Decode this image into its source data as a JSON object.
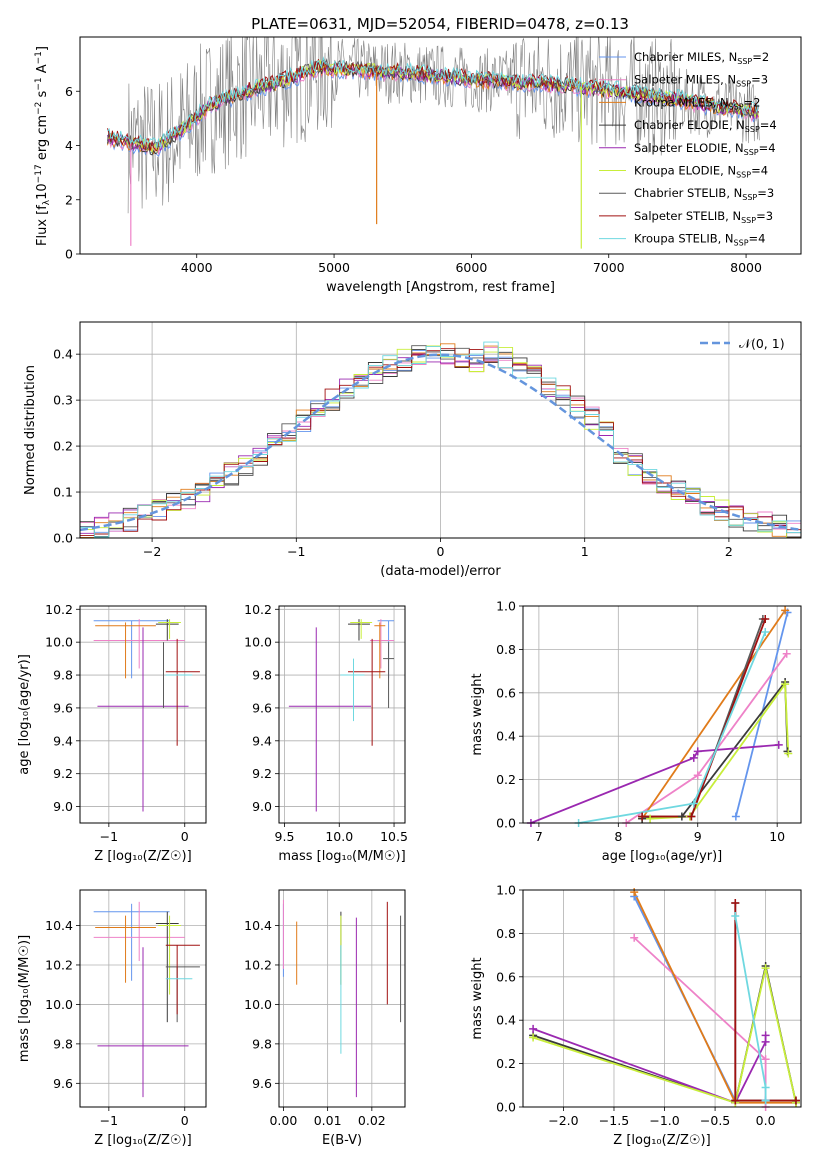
{
  "title": "PLATE=0631, MJD=52054, FIBERID=0478, z=0.13",
  "colors": {
    "chabrier_miles": "#6495ed",
    "salpeter_miles": "#ee82c8",
    "kroupa_miles": "#e07b1a",
    "chabrier_elodie": "#3a3a3a",
    "salpeter_elodie": "#9a28b0",
    "kroupa_elodie": "#c8ee3a",
    "chabrier_stelib": "#5a5a5a",
    "salpeter_stelib": "#a01010",
    "kroupa_stelib": "#6fd8e0",
    "data_gray": "#808080",
    "normal_curve": "#6495dd",
    "grid": "#b0b0b0"
  },
  "chart_data": [
    {
      "type": "line",
      "id": "spectrum",
      "xlabel": "wavelength [Angstrom, rest frame]",
      "ylabel_parts": [
        "Flux [f",
        "λ",
        "10",
        "−17",
        " erg cm",
        "−2",
        " s",
        "−1",
        " A",
        "−1",
        "]"
      ],
      "xlim": [
        3150,
        8400
      ],
      "ylim": [
        0,
        8
      ],
      "xticks": [
        4000,
        5000,
        6000,
        7000,
        8000
      ],
      "yticks": [
        0,
        2,
        4,
        6
      ],
      "grid": false,
      "legend_position": "top-right",
      "legend": [
        {
          "name": "Chabrier MILES, N",
          "sub": "SSP",
          "eq": "=2",
          "color": "chabrier_miles"
        },
        {
          "name": "Salpeter MILES, N",
          "sub": "SSP",
          "eq": "=3",
          "color": "salpeter_miles"
        },
        {
          "name": "Kroupa MILES, N",
          "sub": "SSP",
          "eq": "=2",
          "color": "kroupa_miles"
        },
        {
          "name": "Chabrier ELODIE, N",
          "sub": "SSP",
          "eq": "=4",
          "color": "chabrier_elodie"
        },
        {
          "name": "Salpeter ELODIE, N",
          "sub": "SSP",
          "eq": "=4",
          "color": "salpeter_elodie"
        },
        {
          "name": "Kroupa ELODIE, N",
          "sub": "SSP",
          "eq": "=4",
          "color": "kroupa_elodie"
        },
        {
          "name": "Chabrier STELIB, N",
          "sub": "SSP",
          "eq": "=3",
          "color": "chabrier_stelib"
        },
        {
          "name": "Salpeter STELIB, N",
          "sub": "SSP",
          "eq": "=3",
          "color": "salpeter_stelib"
        },
        {
          "name": "Kroupa STELIB, N",
          "sub": "SSP",
          "eq": "=4",
          "color": "kroupa_stelib"
        }
      ],
      "model_continuum": {
        "x": [
          3350,
          3500,
          3700,
          3900,
          4100,
          4300,
          4500,
          4700,
          4900,
          5100,
          5300,
          5500,
          5700,
          5900,
          6100,
          6300,
          6500,
          6700,
          6900,
          7100,
          7300,
          7500,
          7700,
          7900,
          8100
        ],
        "y": [
          4.3,
          4.1,
          3.9,
          4.6,
          5.5,
          5.9,
          6.2,
          6.5,
          6.9,
          6.8,
          6.75,
          6.7,
          6.6,
          6.5,
          6.4,
          6.35,
          6.3,
          6.2,
          6.1,
          6.0,
          5.85,
          5.7,
          5.5,
          5.35,
          5.2
        ]
      },
      "model_spikes": [
        {
          "x": 5310,
          "y": 1.1,
          "color": "kroupa_miles"
        },
        {
          "x": 3520,
          "y": 0.3,
          "color": "salpeter_miles"
        },
        {
          "x": 6800,
          "y": 0.2,
          "color": "kroupa_elodie"
        }
      ]
    },
    {
      "type": "histogram",
      "id": "residuals",
      "xlabel": "(data-model)/error",
      "ylabel": "Normed distribution",
      "xlim": [
        -2.5,
        2.5
      ],
      "ylim": [
        0,
        0.47
      ],
      "xticks": [
        -2,
        -1,
        0,
        1,
        2
      ],
      "yticks": [
        0.0,
        0.1,
        0.2,
        0.3,
        0.4
      ],
      "grid": true,
      "bin_width": 0.1,
      "legend": [
        {
          "name": "𝒩(0, 1)",
          "style": "dashed",
          "color": "normal_curve"
        }
      ],
      "legend_position": "top-right",
      "series_colors": [
        "chabrier_miles",
        "salpeter_miles",
        "kroupa_miles",
        "chabrier_elodie",
        "salpeter_elodie",
        "kroupa_elodie",
        "chabrier_stelib",
        "salpeter_stelib",
        "kroupa_stelib"
      ]
    },
    {
      "type": "errorbar",
      "id": "age_vs_Z",
      "xlabel": "Z [log₁₀(Z/Z☉)]",
      "ylabel": "age  [log₁₀(age/yr)]",
      "xlim": [
        -1.38,
        0.28
      ],
      "ylim": [
        8.9,
        10.22
      ],
      "xticks": [
        -1,
        0
      ],
      "yticks": [
        9.0,
        9.2,
        9.4,
        9.6,
        9.8,
        10.0,
        10.2
      ],
      "grid": true,
      "points": [
        {
          "color": "chabrier_miles",
          "x": -0.7,
          "xerr": [
            0.5,
            0.5
          ],
          "y": 10.13,
          "yerr": [
            0.35,
            0.0
          ]
        },
        {
          "color": "salpeter_miles",
          "x": -0.6,
          "xerr": [
            0.6,
            0.6
          ],
          "y": 10.01,
          "yerr": [
            0.17,
            0.13
          ]
        },
        {
          "color": "kroupa_miles",
          "x": -0.78,
          "xerr": [
            0.4,
            0.4
          ],
          "y": 10.1,
          "yerr": [
            0.32,
            0.02
          ]
        },
        {
          "color": "chabrier_elodie",
          "x": -0.23,
          "xerr": [
            0.15,
            0.15
          ],
          "y": 10.11,
          "yerr": [
            0.1,
            0.03
          ]
        },
        {
          "color": "salpeter_elodie",
          "x": -0.55,
          "xerr": [
            0.6,
            0.6
          ],
          "y": 9.61,
          "yerr": [
            0.64,
            0.48
          ]
        },
        {
          "color": "kroupa_elodie",
          "x": -0.2,
          "xerr": [
            0.15,
            0.15
          ],
          "y": 10.12,
          "yerr": [
            0.1,
            0.02
          ]
        },
        {
          "color": "chabrier_stelib",
          "x": -0.28,
          "xerr": [
            0.0,
            0.0
          ],
          "y": 9.9,
          "yerr": [
            0.3,
            0.1
          ]
        },
        {
          "color": "salpeter_stelib",
          "x": -0.1,
          "xerr": [
            0.15,
            0.3
          ],
          "y": 9.82,
          "yerr": [
            0.45,
            0.2
          ]
        },
        {
          "color": "kroupa_stelib",
          "x": -0.05,
          "xerr": [
            0.2,
            0.15
          ],
          "y": 9.8,
          "yerr": [
            0.0,
            0.0
          ]
        }
      ]
    },
    {
      "type": "errorbar",
      "id": "age_vs_mass",
      "xlabel": "mass [log₁₀(M/M☉)]",
      "ylabel": "",
      "xlim": [
        9.45,
        10.6
      ],
      "ylim": [
        8.9,
        10.22
      ],
      "xticks": [
        9.5,
        10.0,
        10.5
      ],
      "yticks": [
        9.0,
        9.2,
        9.4,
        9.6,
        9.8,
        10.0,
        10.2
      ],
      "grid": true,
      "points": [
        {
          "color": "chabrier_miles",
          "x": 10.45,
          "xerr": [
            0.1,
            0.05
          ],
          "y": 10.13,
          "yerr": [
            0.35,
            0.0
          ]
        },
        {
          "color": "salpeter_miles",
          "x": 10.38,
          "xerr": [
            0.1,
            0.12
          ],
          "y": 10.01,
          "yerr": [
            0.17,
            0.13
          ]
        },
        {
          "color": "kroupa_miles",
          "x": 10.37,
          "xerr": [
            0.05,
            0.05
          ],
          "y": 10.1,
          "yerr": [
            0.32,
            0.02
          ]
        },
        {
          "color": "chabrier_elodie",
          "x": 10.18,
          "xerr": [
            0.1,
            0.1
          ],
          "y": 10.11,
          "yerr": [
            0.1,
            0.03
          ]
        },
        {
          "color": "salpeter_elodie",
          "x": 9.79,
          "xerr": [
            0.25,
            0.5
          ],
          "y": 9.61,
          "yerr": [
            0.64,
            0.48
          ]
        },
        {
          "color": "kroupa_elodie",
          "x": 10.2,
          "xerr": [
            0.1,
            0.1
          ],
          "y": 10.12,
          "yerr": [
            0.1,
            0.02
          ]
        },
        {
          "color": "chabrier_stelib",
          "x": 10.45,
          "xerr": [
            0.05,
            0.05
          ],
          "y": 9.9,
          "yerr": [
            0.3,
            0.1
          ]
        },
        {
          "color": "salpeter_stelib",
          "x": 10.3,
          "xerr": [
            0.22,
            0.12
          ],
          "y": 9.82,
          "yerr": [
            0.45,
            0.2
          ]
        },
        {
          "color": "kroupa_stelib",
          "x": 10.13,
          "xerr": [
            0.12,
            0.1
          ],
          "y": 9.8,
          "yerr": [
            0.28,
            0.1
          ]
        }
      ]
    },
    {
      "type": "line",
      "id": "weight_vs_age",
      "xlabel": "age  [log₁₀(age/yr)]",
      "ylabel": "mass weight",
      "xlim": [
        6.8,
        10.3
      ],
      "ylim": [
        0,
        1.0
      ],
      "xticks": [
        7,
        8,
        9,
        10
      ],
      "yticks": [
        0.0,
        0.2,
        0.4,
        0.6,
        0.8,
        1.0
      ],
      "grid": true,
      "series": [
        {
          "color": "chabrier_miles",
          "x": [
            9.48,
            10.13
          ],
          "y": [
            0.03,
            0.97
          ]
        },
        {
          "color": "salpeter_miles",
          "x": [
            8.1,
            9.0,
            10.12
          ],
          "y": [
            0.0,
            0.22,
            0.78
          ]
        },
        {
          "color": "kroupa_miles",
          "x": [
            8.3,
            10.1
          ],
          "y": [
            0.02,
            0.98
          ]
        },
        {
          "color": "chabrier_elodie",
          "x": [
            8.3,
            8.8,
            10.1,
            10.13
          ],
          "y": [
            0.02,
            0.03,
            0.65,
            0.33
          ]
        },
        {
          "color": "salpeter_elodie",
          "x": [
            6.9,
            8.95,
            9.0,
            10.02
          ],
          "y": [
            0.0,
            0.3,
            0.33,
            0.36
          ]
        },
        {
          "color": "kroupa_elodie",
          "x": [
            8.4,
            8.9,
            10.1,
            10.14
          ],
          "y": [
            0.02,
            0.03,
            0.64,
            0.32
          ]
        },
        {
          "color": "chabrier_stelib",
          "x": [
            8.3,
            8.92,
            9.82
          ],
          "y": [
            0.03,
            0.03,
            0.94
          ]
        },
        {
          "color": "salpeter_stelib",
          "x": [
            8.3,
            8.92,
            9.85
          ],
          "y": [
            0.03,
            0.03,
            0.94
          ]
        },
        {
          "color": "kroupa_stelib",
          "x": [
            7.5,
            8.95,
            9.85
          ],
          "y": [
            0.0,
            0.09,
            0.88
          ]
        }
      ]
    },
    {
      "type": "errorbar",
      "id": "mass_vs_Z",
      "xlabel": "Z [log₁₀(Z/Z☉)]",
      "ylabel": "mass [log₁₀(M/M☉)]",
      "xlim": [
        -1.38,
        0.28
      ],
      "ylim": [
        9.48,
        10.58
      ],
      "xticks": [
        -1,
        0
      ],
      "yticks": [
        9.6,
        9.8,
        10.0,
        10.2,
        10.4
      ],
      "grid": true,
      "points": [
        {
          "color": "chabrier_miles",
          "x": -0.7,
          "xerr": [
            0.5,
            0.5
          ],
          "y": 10.47,
          "yerr": [
            0.35,
            0.04
          ]
        },
        {
          "color": "salpeter_miles",
          "x": -0.6,
          "xerr": [
            0.6,
            0.6
          ],
          "y": 10.34,
          "yerr": [
            0.12,
            0.18
          ]
        },
        {
          "color": "kroupa_miles",
          "x": -0.78,
          "xerr": [
            0.4,
            0.4
          ],
          "y": 10.39,
          "yerr": [
            0.28,
            0.06
          ]
        },
        {
          "color": "chabrier_elodie",
          "x": -0.23,
          "xerr": [
            0.15,
            0.15
          ],
          "y": 10.41,
          "yerr": [
            0.5,
            0.06
          ]
        },
        {
          "color": "salpeter_elodie",
          "x": -0.55,
          "xerr": [
            0.6,
            0.6
          ],
          "y": 9.79,
          "yerr": [
            0.26,
            0.5
          ]
        },
        {
          "color": "kroupa_elodie",
          "x": -0.2,
          "xerr": [
            0.15,
            0.15
          ],
          "y": 10.4,
          "yerr": [
            0.35,
            0.05
          ]
        },
        {
          "color": "chabrier_stelib",
          "x": -0.1,
          "xerr": [
            0.15,
            0.3
          ],
          "y": 10.19,
          "yerr": [
            0.28,
            0.0
          ]
        },
        {
          "color": "salpeter_stelib",
          "x": -0.1,
          "xerr": [
            0.15,
            0.3
          ],
          "y": 10.3,
          "yerr": [
            0.35,
            0.0
          ]
        },
        {
          "color": "kroupa_stelib",
          "x": -0.05,
          "xerr": [
            0.2,
            0.15
          ],
          "y": 10.13,
          "yerr": [
            0.0,
            0.0
          ]
        }
      ]
    },
    {
      "type": "errorbar",
      "id": "mass_vs_ebv",
      "xlabel": "E(B-V)",
      "ylabel": "",
      "xlim": [
        -0.001,
        0.0275
      ],
      "ylim": [
        9.48,
        10.58
      ],
      "xticks": [
        0.0,
        0.01,
        0.02
      ],
      "xticklabels": [
        "0.00",
        "0.01",
        "0.02"
      ],
      "yticks": [
        9.6,
        9.8,
        10.0,
        10.2,
        10.4
      ],
      "grid": true,
      "points": [
        {
          "color": "chabrier_miles",
          "x": 0.0,
          "y": 10.36,
          "yerr": [
            0.22,
            0.15
          ]
        },
        {
          "color": "salpeter_miles",
          "x": 0.0,
          "y": 10.36,
          "yerr": [
            0.18,
            0.17
          ]
        },
        {
          "color": "kroupa_miles",
          "x": 0.003,
          "y": 10.25,
          "yerr": [
            0.15,
            0.17
          ]
        },
        {
          "color": "chabrier_elodie",
          "x": 0.013,
          "y": 10.3,
          "yerr": [
            0.2,
            0.17
          ]
        },
        {
          "color": "kroupa_elodie",
          "x": 0.013,
          "y": 10.3,
          "yerr": [
            0.2,
            0.15
          ]
        },
        {
          "color": "kroupa_stelib",
          "x": 0.013,
          "y": 10.1,
          "yerr": [
            0.35,
            0.2
          ]
        },
        {
          "color": "salpeter_elodie",
          "x": 0.0165,
          "y": 9.99,
          "yerr": [
            0.46,
            0.45
          ]
        },
        {
          "color": "salpeter_stelib",
          "x": 0.0235,
          "y": 10.26,
          "yerr": [
            0.26,
            0.26
          ]
        },
        {
          "color": "chabrier_stelib",
          "x": 0.0265,
          "y": 10.18,
          "yerr": [
            0.27,
            0.27
          ]
        }
      ]
    },
    {
      "type": "line",
      "id": "weight_vs_Z",
      "xlabel": "Z [log₁₀(Z/Z☉)]",
      "ylabel": "mass weight",
      "xlim": [
        -2.4,
        0.35
      ],
      "ylim": [
        0,
        1.0
      ],
      "xticks": [
        -2.0,
        -1.5,
        -1.0,
        -0.5,
        0.0
      ],
      "yticks": [
        0.0,
        0.2,
        0.4,
        0.6,
        0.8,
        1.0
      ],
      "grid": true,
      "series": [
        {
          "color": "chabrier_miles",
          "x": [
            -1.3,
            -0.3,
            0.0
          ],
          "y": [
            0.97,
            0.03,
            0.03
          ]
        },
        {
          "color": "salpeter_miles",
          "x": [
            -1.3,
            0.0,
            0.0
          ],
          "y": [
            0.78,
            0.22,
            0.0
          ]
        },
        {
          "color": "kroupa_miles",
          "x": [
            -1.3,
            -0.3,
            0.3
          ],
          "y": [
            0.99,
            0.02,
            0.02
          ]
        },
        {
          "color": "chabrier_elodie",
          "x": [
            -2.3,
            -0.3,
            0.0,
            0.3
          ],
          "y": [
            0.33,
            0.02,
            0.65,
            0.02
          ]
        },
        {
          "color": "salpeter_elodie",
          "x": [
            -2.3,
            -0.3,
            0.0,
            0.0
          ],
          "y": [
            0.36,
            0.02,
            0.3,
            0.33
          ]
        },
        {
          "color": "kroupa_elodie",
          "x": [
            -2.3,
            -0.3,
            0.0,
            0.3
          ],
          "y": [
            0.32,
            0.02,
            0.64,
            0.02
          ]
        },
        {
          "color": "chabrier_stelib",
          "x": [
            -0.3,
            -0.3,
            0.3
          ],
          "y": [
            0.94,
            0.03,
            0.03
          ]
        },
        {
          "color": "salpeter_stelib",
          "x": [
            -0.3,
            -0.3,
            0.3
          ],
          "y": [
            0.94,
            0.03,
            0.03
          ]
        },
        {
          "color": "kroupa_stelib",
          "x": [
            -0.3,
            0.0,
            0.0
          ],
          "y": [
            0.88,
            0.09,
            0.03
          ]
        }
      ]
    }
  ]
}
